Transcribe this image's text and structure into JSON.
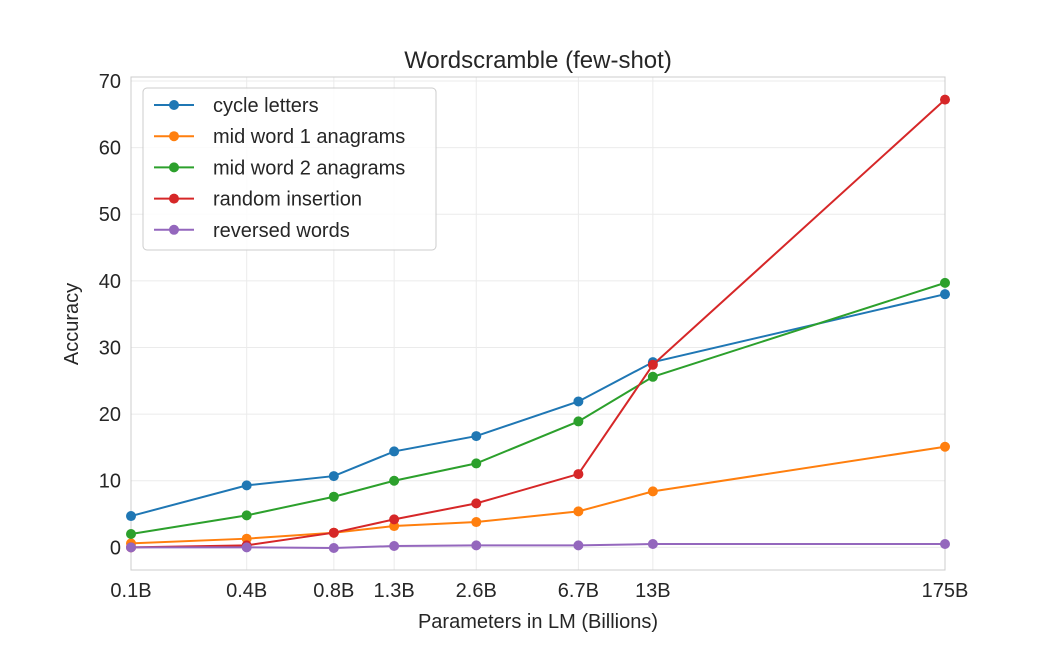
{
  "chart_data": {
    "type": "line",
    "title": "Wordscramble (few-shot)",
    "xlabel": "Parameters in LM (Billions)",
    "ylabel": "Accuracy",
    "x_scale": "log",
    "x": [
      0.125,
      0.35,
      0.76,
      1.3,
      2.7,
      6.7,
      13,
      175
    ],
    "x_tick_labels": [
      "0.1B",
      "0.4B",
      "0.8B",
      "1.3B",
      "2.6B",
      "6.7B",
      "13B",
      "175B"
    ],
    "ylim": [
      -3.4,
      70.6
    ],
    "y_ticks": [
      0,
      10,
      20,
      30,
      40,
      50,
      60,
      70
    ],
    "grid": true,
    "legend_position": "top-left",
    "series": [
      {
        "name": "cycle letters",
        "color": "#1f77b4",
        "values": [
          4.7,
          9.3,
          10.7,
          14.4,
          16.7,
          21.9,
          27.8,
          38.0
        ]
      },
      {
        "name": "mid word 1 anagrams",
        "color": "#ff7f0e",
        "values": [
          0.6,
          1.3,
          2.2,
          3.2,
          3.8,
          5.4,
          8.4,
          15.1
        ]
      },
      {
        "name": "mid word 2 anagrams",
        "color": "#2ca02c",
        "values": [
          2.0,
          4.8,
          7.6,
          10.0,
          12.6,
          18.9,
          25.6,
          39.7
        ]
      },
      {
        "name": "random insertion",
        "color": "#d62728",
        "values": [
          0.0,
          0.3,
          2.2,
          4.2,
          6.6,
          11.0,
          27.4,
          67.2
        ]
      },
      {
        "name": "reversed words",
        "color": "#9467bd",
        "values": [
          0.0,
          0.0,
          -0.1,
          0.2,
          0.3,
          0.3,
          0.5,
          0.5
        ]
      }
    ]
  }
}
